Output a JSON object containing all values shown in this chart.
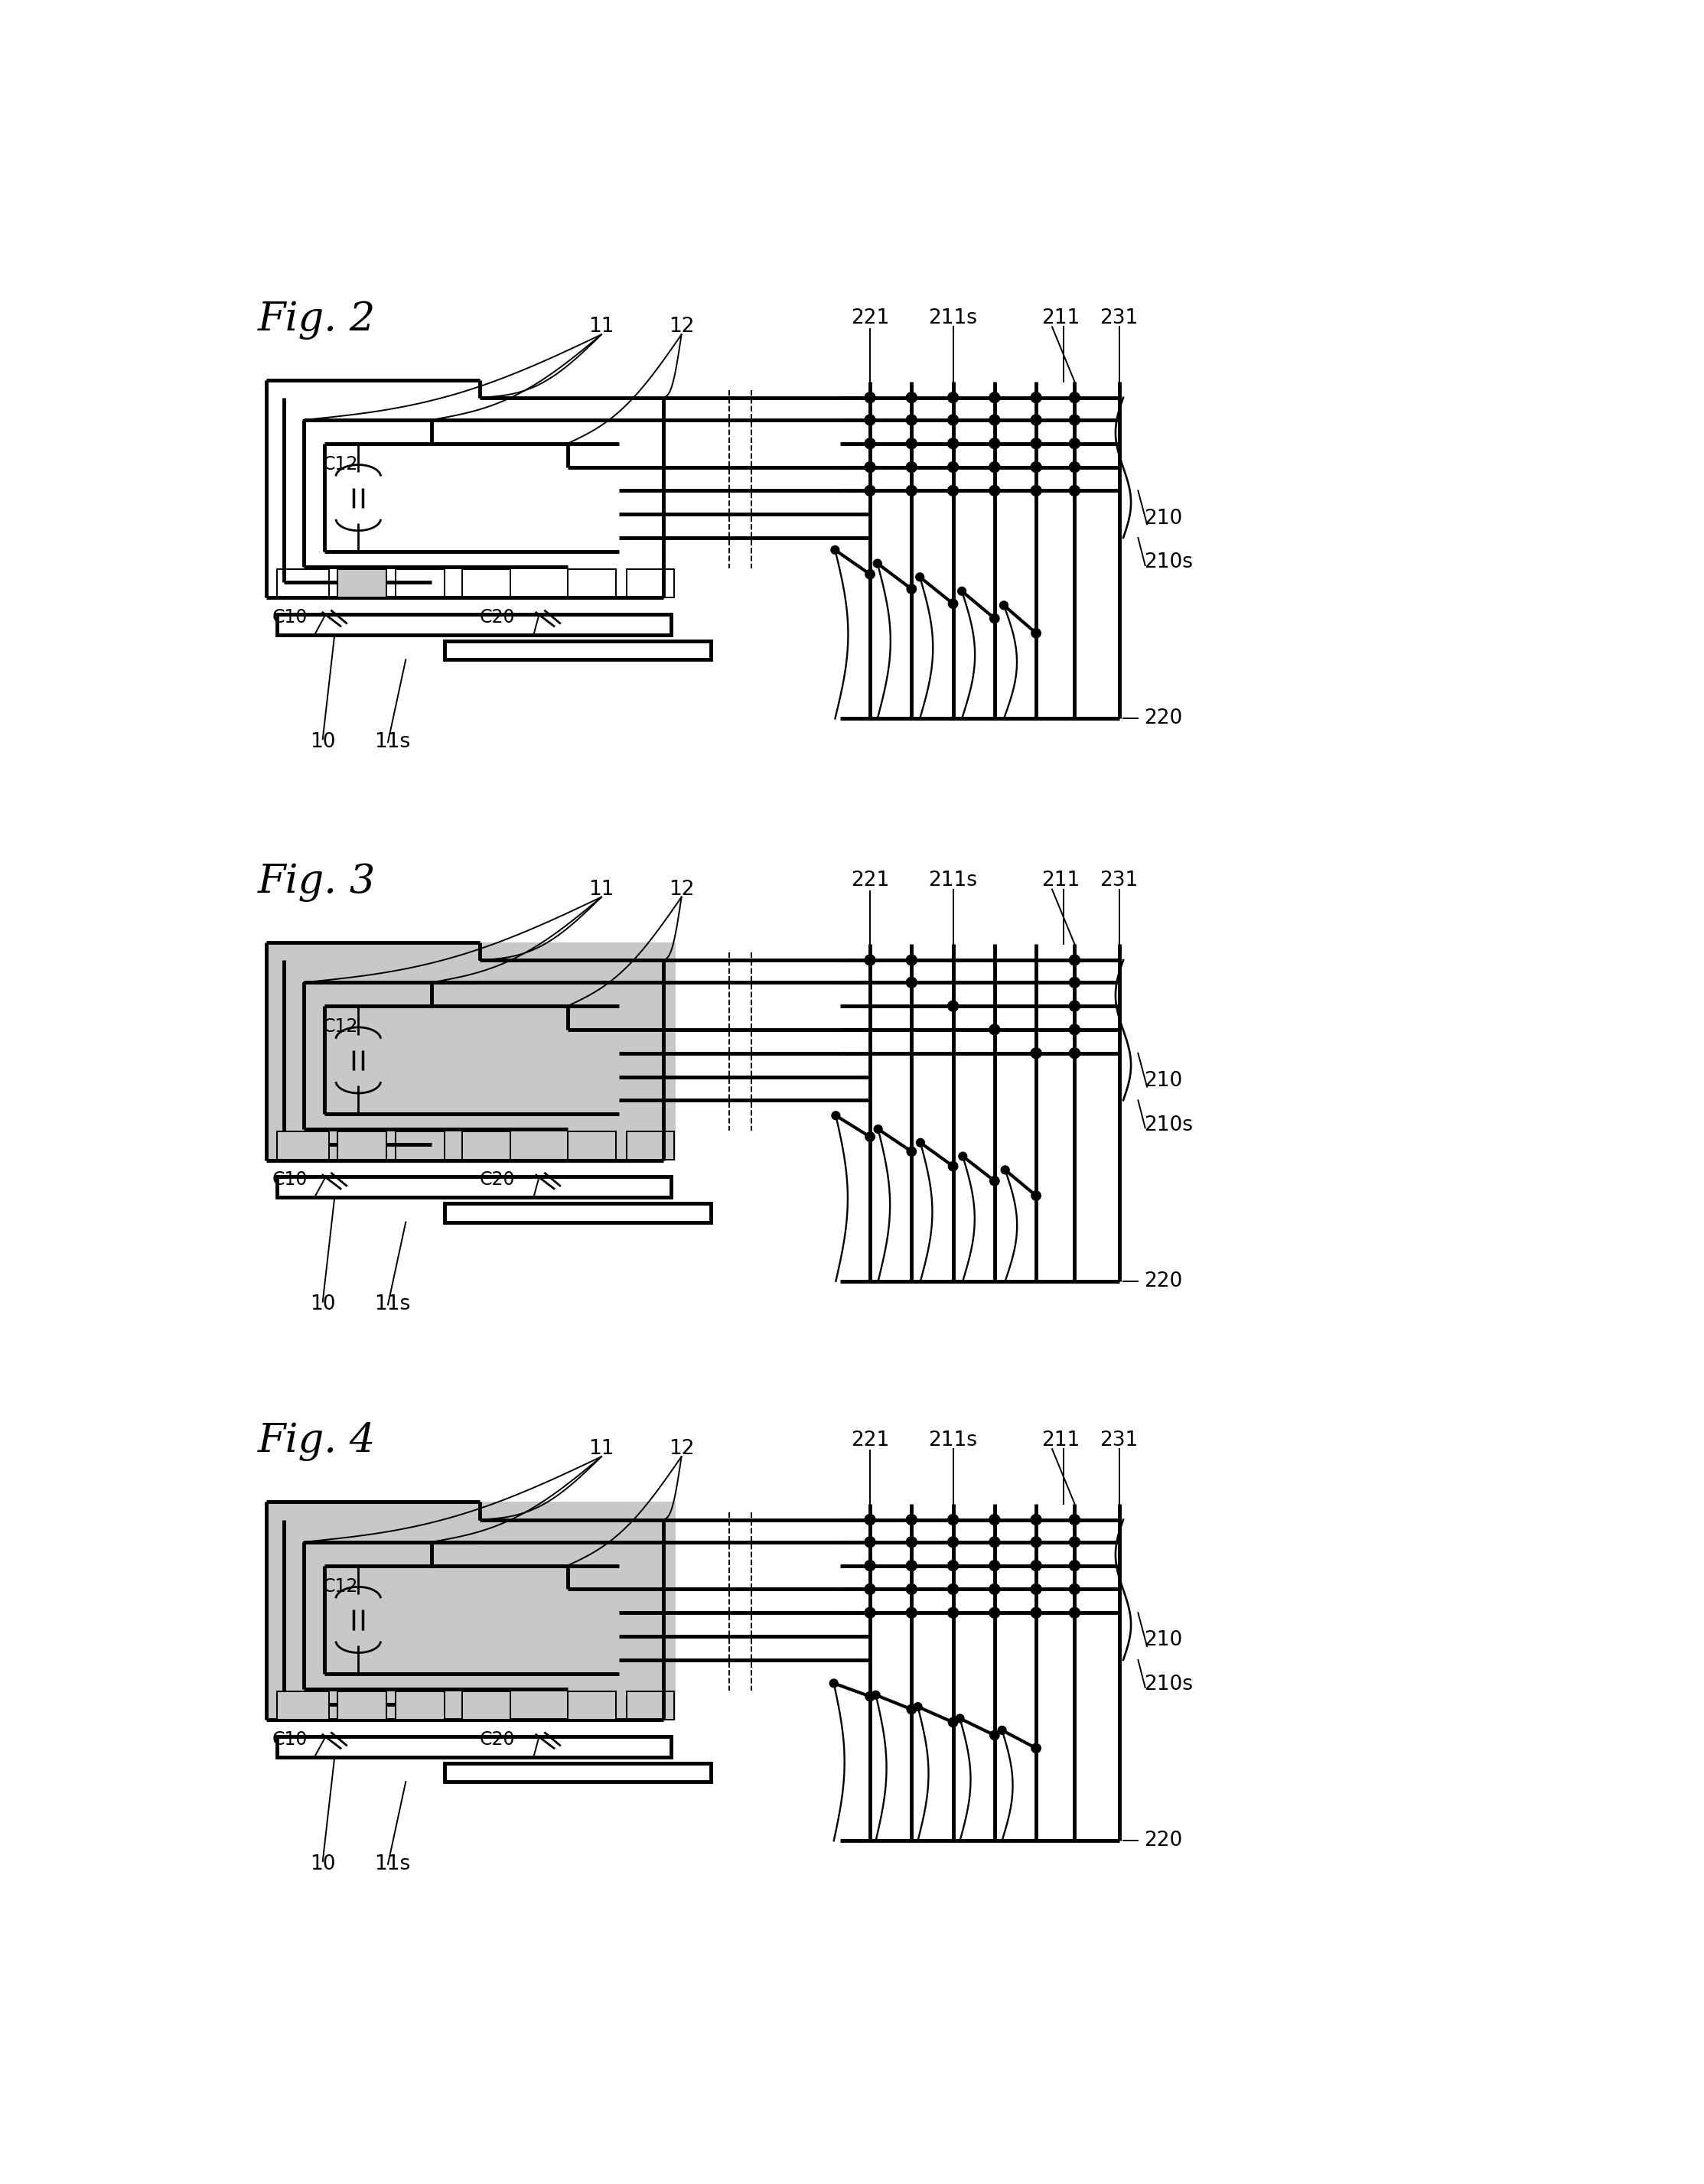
{
  "bg_color": "#ffffff",
  "lw_thick": 3.5,
  "lw_med": 2.0,
  "lw_thin": 1.4,
  "gray_fill": "#c8c8c8",
  "dot_r": 9,
  "label_fs": 19,
  "figlabel_fs": 38,
  "fig_offsets": [
    55,
    1010,
    1960
  ],
  "fig_variants": [
    2,
    3,
    4
  ],
  "fig_names": [
    "Fig. 2",
    "Fig. 3",
    "Fig. 4"
  ]
}
